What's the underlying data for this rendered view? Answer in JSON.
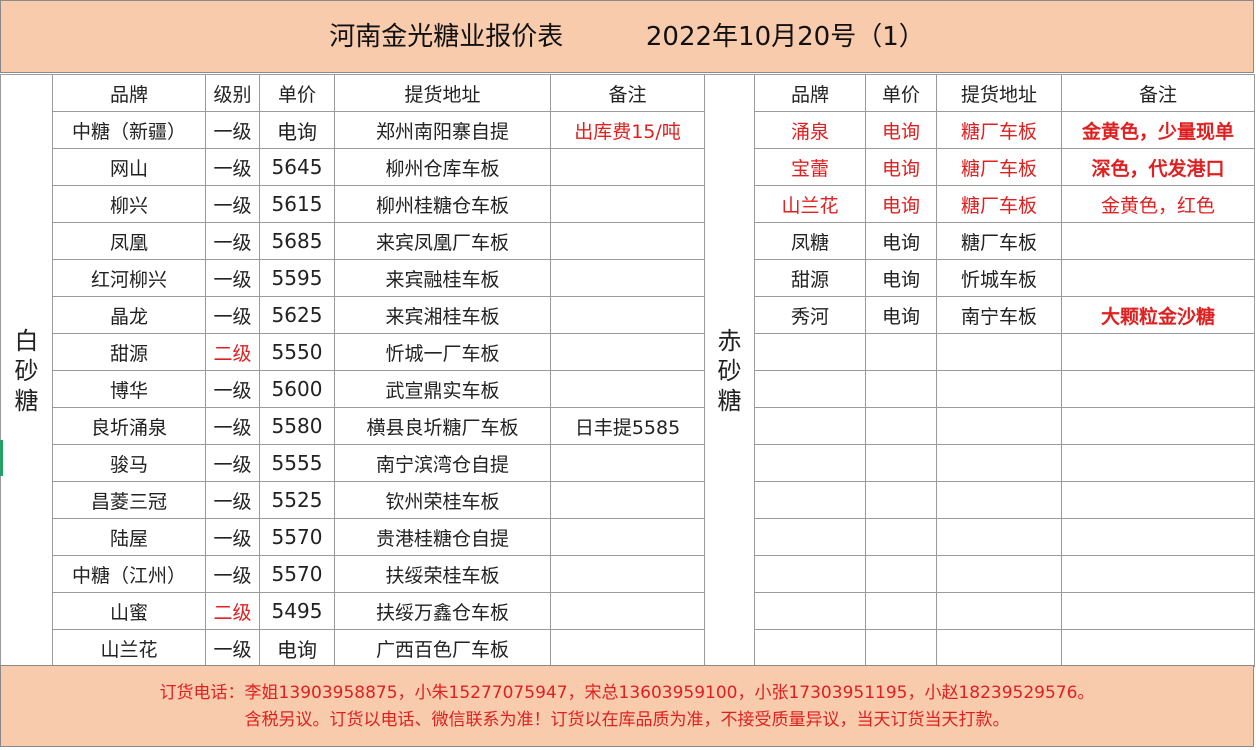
{
  "title": "河南金光糖业报价表          2022年10月20号（1）",
  "white_sugar": {
    "side_label": [
      "白",
      "砂",
      "糖"
    ],
    "headers": [
      "品牌",
      "级别",
      "单价",
      "提货地址",
      "备注"
    ],
    "rows": [
      {
        "brand": "中糖（新疆）",
        "grade": "一级",
        "price": "电询",
        "address": "郑州南阳寨自提",
        "note": "出库费15/吨"
      },
      {
        "brand": "网山",
        "grade": "一级",
        "price": "5645",
        "address": "柳州仓库车板",
        "note": ""
      },
      {
        "brand": "柳兴",
        "grade": "一级",
        "price": "5615",
        "address": "柳州桂糖仓车板",
        "note": ""
      },
      {
        "brand": "凤凰",
        "grade": "一级",
        "price": "5685",
        "address": "来宾凤凰厂车板",
        "note": ""
      },
      {
        "brand": "红河柳兴",
        "grade": "一级",
        "price": "5595",
        "address": "来宾融桂车板",
        "note": ""
      },
      {
        "brand": "晶龙",
        "grade": "一级",
        "price": "5625",
        "address": "来宾湘桂车板",
        "note": ""
      },
      {
        "brand": "甜源",
        "grade": "二级",
        "price": "5550",
        "address": "忻城一厂车板",
        "note": ""
      },
      {
        "brand": "博华",
        "grade": "一级",
        "price": "5600",
        "address": "武宣鼎实车板",
        "note": ""
      },
      {
        "brand": "良圻涌泉",
        "grade": "一级",
        "price": "5580",
        "address": "横县良圻糖厂车板",
        "note": "日丰提5585"
      },
      {
        "brand": "骏马",
        "grade": "一级",
        "price": "5555",
        "address": "南宁滨湾仓自提",
        "note": ""
      },
      {
        "brand": "昌菱三冠",
        "grade": "一级",
        "price": "5525",
        "address": "钦州荣桂车板",
        "note": ""
      },
      {
        "brand": "陆屋",
        "grade": "一级",
        "price": "5570",
        "address": "贵港桂糖仓自提",
        "note": ""
      },
      {
        "brand": "中糖（江州）",
        "grade": "一级",
        "price": "5570",
        "address": "扶绥荣桂车板",
        "note": ""
      },
      {
        "brand": "山蜜",
        "grade": "二级",
        "price": "5495",
        "address": "扶绥万鑫仓车板",
        "note": ""
      },
      {
        "brand": "山兰花",
        "grade": "一级",
        "price": "电询",
        "address": "广西百色厂车板",
        "note": ""
      }
    ]
  },
  "red_sugar": {
    "side_label": [
      "赤",
      "砂",
      "糖"
    ],
    "headers": [
      "品牌",
      "单价",
      "提货地址",
      "备注"
    ],
    "rows": [
      {
        "brand": "涌泉",
        "price": "电询",
        "address": "糖厂车板",
        "note": "金黄色，少量现单"
      },
      {
        "brand": "宝蕾",
        "price": "电询",
        "address": "糖厂车板",
        "note": "深色，代发港口"
      },
      {
        "brand": "山兰花",
        "price": "电询",
        "address": "糖厂车板",
        "note": "金黄色，红色"
      },
      {
        "brand": "凤糖",
        "price": "电询",
        "address": "糖厂车板",
        "note": ""
      },
      {
        "brand": "甜源",
        "price": "电询",
        "address": "忻城车板",
        "note": ""
      },
      {
        "brand": "秀河",
        "price": "电询",
        "address": "南宁车板",
        "note": "大颗粒金沙糖"
      }
    ]
  },
  "footer": {
    "line1": "订货电话：李姐13903958875，小朱15277075947，宋总13603959100，小张17303951195，小赵18239529576。",
    "line2": "含税另议。订货以电话、微信联系为准！订货以在库品质为准，不接受质量异议，当天订货当天打款。"
  },
  "colors": {
    "header_bg": "#f8cbad",
    "accent_red": "#e02020",
    "grid": "#9a9a9a"
  }
}
